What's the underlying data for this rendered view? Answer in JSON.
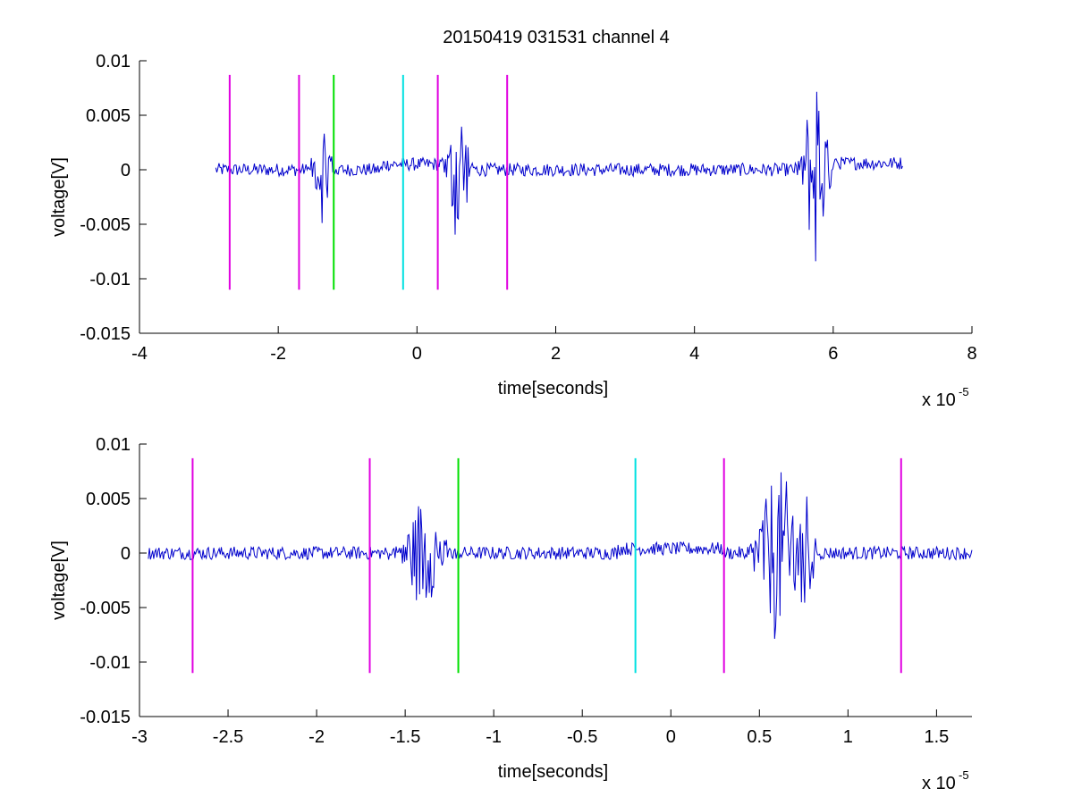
{
  "figure": {
    "title": "20150419 031531 channel 4",
    "colors": {
      "trace": "#0000cc",
      "magenta": "#e000e0",
      "green": "#00e000",
      "cyan": "#00e0e0",
      "axis": "#000000",
      "background": "#ffffff"
    }
  },
  "chart_data": [
    {
      "type": "line",
      "title": "20150419 031531 channel 4",
      "xlabel": "time[seconds]",
      "ylabel": "voltage[V]",
      "x_multiplier_label": "x 10",
      "x_multiplier_exponent": "-5",
      "x_scale": 1e-05,
      "xlim": [
        -4,
        8
      ],
      "ylim": [
        -0.015,
        0.01
      ],
      "xticks": [
        -4,
        -2,
        0,
        2,
        4,
        6,
        8
      ],
      "xtick_labels": [
        "-4",
        "-2",
        "0",
        "2",
        "4",
        "6",
        "8"
      ],
      "yticks": [
        0.01,
        0.005,
        0,
        -0.005,
        -0.01,
        -0.015
      ],
      "ytick_labels": [
        "0.01",
        "0.005",
        "0",
        "-0.005",
        "-0.01",
        "-0.015"
      ],
      "grid": false,
      "series": [
        {
          "color": "#0000cc",
          "x_range": [
            -2.9,
            7.0
          ],
          "baseline": 0.0,
          "noise": 0.0006,
          "bursts": [
            {
              "t": -1.35,
              "amp": 0.005,
              "width": 0.25
            },
            {
              "t": 0.6,
              "amp": 0.008,
              "width": 0.25
            },
            {
              "t": 5.75,
              "amp": 0.01,
              "width": 0.3
            }
          ],
          "offset_segments": [
            {
              "from": -0.5,
              "to": 0.4,
              "value": 0.0005
            },
            {
              "from": 6.0,
              "to": 7.0,
              "value": 0.0006
            }
          ]
        }
      ],
      "markers": [
        {
          "x": -2.7,
          "color": "magenta",
          "ymin": -0.011,
          "ymax": 0.0087
        },
        {
          "x": -1.7,
          "color": "magenta",
          "ymin": -0.011,
          "ymax": 0.0087
        },
        {
          "x": -1.2,
          "color": "green",
          "ymin": -0.011,
          "ymax": 0.0087
        },
        {
          "x": -0.2,
          "color": "cyan",
          "ymin": -0.011,
          "ymax": 0.0087
        },
        {
          "x": 0.3,
          "color": "magenta",
          "ymin": -0.011,
          "ymax": 0.0087
        },
        {
          "x": 1.3,
          "color": "magenta",
          "ymin": -0.011,
          "ymax": 0.0087
        }
      ]
    },
    {
      "type": "line",
      "title": "",
      "xlabel": "time[seconds]",
      "ylabel": "voltage[V]",
      "x_multiplier_label": "x 10",
      "x_multiplier_exponent": "-5",
      "x_scale": 1e-05,
      "xlim": [
        -3.0,
        1.7
      ],
      "ylim": [
        -0.015,
        0.01
      ],
      "xticks": [
        -3,
        -2.5,
        -2,
        -1.5,
        -1,
        -0.5,
        0,
        0.5,
        1,
        1.5
      ],
      "xtick_labels": [
        "-3",
        "-2.5",
        "-2",
        "-1.5",
        "-1",
        "-0.5",
        "0",
        "0.5",
        "1",
        "1.5"
      ],
      "yticks": [
        0.01,
        0.005,
        0,
        -0.005,
        -0.01,
        -0.015
      ],
      "ytick_labels": [
        "0.01",
        "0.005",
        "0",
        "-0.005",
        "-0.01",
        "-0.015"
      ],
      "grid": false,
      "series": [
        {
          "color": "#0000cc",
          "x_range": [
            -2.95,
            1.7
          ],
          "baseline": 0.0,
          "noise": 0.0006,
          "bursts": [
            {
              "t": -1.4,
              "amp": 0.005,
              "width": 0.2
            },
            {
              "t": 0.6,
              "amp": 0.008,
              "width": 0.2
            },
            {
              "t": 0.75,
              "amp": 0.006,
              "width": 0.1
            }
          ],
          "offset_segments": [
            {
              "from": -0.3,
              "to": 0.3,
              "value": 0.0004
            }
          ]
        }
      ],
      "markers": [
        {
          "x": -2.7,
          "color": "magenta",
          "ymin": -0.011,
          "ymax": 0.0087
        },
        {
          "x": -1.7,
          "color": "magenta",
          "ymin": -0.011,
          "ymax": 0.0087
        },
        {
          "x": -1.2,
          "color": "green",
          "ymin": -0.011,
          "ymax": 0.0087
        },
        {
          "x": -0.2,
          "color": "cyan",
          "ymin": -0.011,
          "ymax": 0.0087
        },
        {
          "x": 0.3,
          "color": "magenta",
          "ymin": -0.011,
          "ymax": 0.0087
        },
        {
          "x": 1.3,
          "color": "magenta",
          "ymin": -0.011,
          "ymax": 0.0087
        }
      ]
    }
  ]
}
